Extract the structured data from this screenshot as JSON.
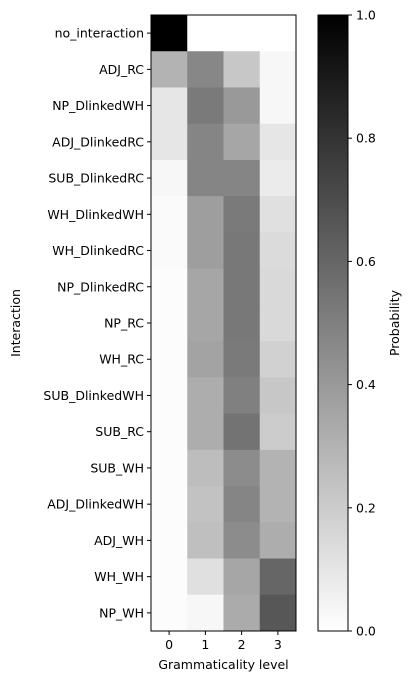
{
  "chart_data": {
    "type": "heatmap",
    "title": "",
    "xlabel": "Grammaticality level",
    "ylabel": "Interaction",
    "x_categories": [
      "0",
      "1",
      "2",
      "3"
    ],
    "y_categories": [
      "no_interaction",
      "ADJ_RC",
      "NP_DlinkedWH",
      "ADJ_DlinkedRC",
      "SUB_DlinkedRC",
      "WH_DlinkedWH",
      "WH_DlinkedRC",
      "NP_DlinkedRC",
      "NP_RC",
      "WH_RC",
      "SUB_DlinkedWH",
      "SUB_RC",
      "SUB_WH",
      "ADJ_DlinkedWH",
      "ADJ_WH",
      "WH_WH",
      "NP_WH"
    ],
    "values": [
      [
        1.0,
        0.0,
        0.0,
        0.0
      ],
      [
        0.3,
        0.47,
        0.22,
        0.03
      ],
      [
        0.1,
        0.52,
        0.4,
        0.03
      ],
      [
        0.1,
        0.48,
        0.35,
        0.1
      ],
      [
        0.03,
        0.48,
        0.48,
        0.08
      ],
      [
        0.02,
        0.38,
        0.52,
        0.12
      ],
      [
        0.02,
        0.38,
        0.53,
        0.14
      ],
      [
        0.01,
        0.35,
        0.53,
        0.15
      ],
      [
        0.01,
        0.35,
        0.53,
        0.15
      ],
      [
        0.01,
        0.36,
        0.52,
        0.18
      ],
      [
        0.01,
        0.32,
        0.5,
        0.22
      ],
      [
        0.01,
        0.32,
        0.55,
        0.2
      ],
      [
        0.01,
        0.26,
        0.45,
        0.3
      ],
      [
        0.01,
        0.24,
        0.48,
        0.3
      ],
      [
        0.01,
        0.25,
        0.45,
        0.32
      ],
      [
        0.01,
        0.12,
        0.35,
        0.6
      ],
      [
        0.01,
        0.03,
        0.33,
        0.66
      ]
    ],
    "colorbar": {
      "label": "Probability",
      "range": [
        0.0,
        1.0
      ],
      "ticks": [
        "0.0",
        "0.2",
        "0.4",
        "0.6",
        "0.8",
        "1.0"
      ],
      "colormap": "greys (white = 0, black = 1)"
    },
    "grid": false
  }
}
